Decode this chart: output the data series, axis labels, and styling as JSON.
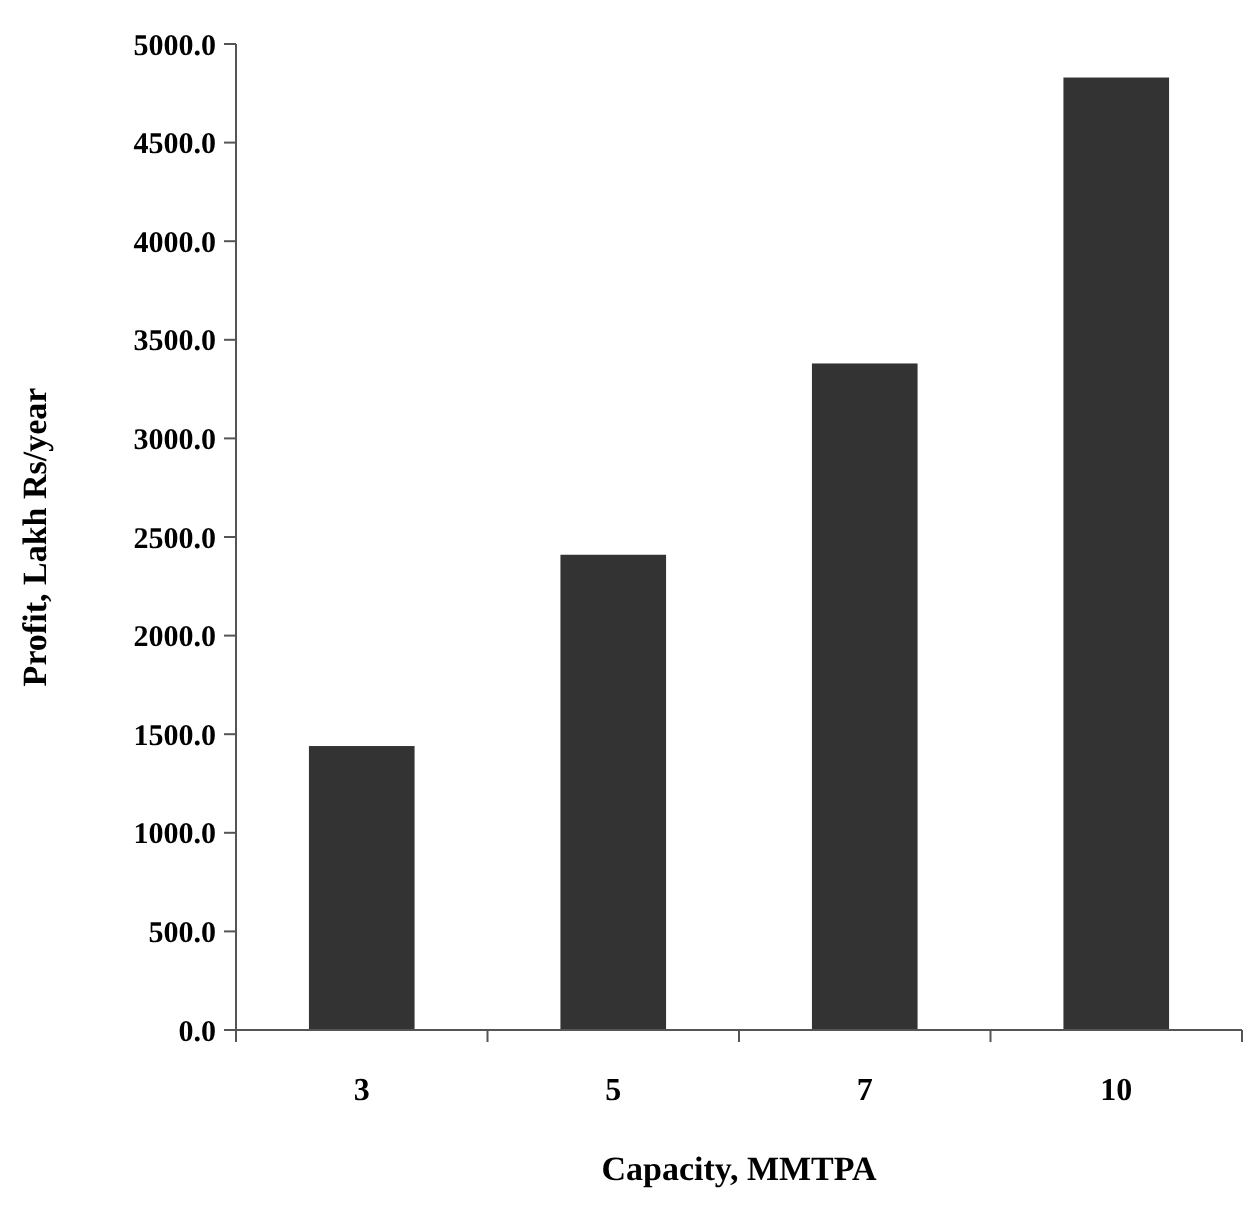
{
  "chart_data": {
    "type": "bar",
    "xlabel": "Capacity, MMTPA",
    "ylabel": "Profit, Lakh Rs/year",
    "categories": [
      "3",
      "5",
      "7",
      "10"
    ],
    "values": [
      1440,
      2410,
      3380,
      4830
    ],
    "color": "#333333",
    "ylim": [
      0,
      5000
    ],
    "yticks": [
      {
        "value": 0,
        "label": "0.0"
      },
      {
        "value": 500,
        "label": "500.0"
      },
      {
        "value": 1000,
        "label": "1000.0"
      },
      {
        "value": 1500,
        "label": "1500.0"
      },
      {
        "value": 2000,
        "label": "2000.0"
      },
      {
        "value": 2500,
        "label": "2500.0"
      },
      {
        "value": 3000,
        "label": "3000.0"
      },
      {
        "value": 3500,
        "label": "3500.0"
      },
      {
        "value": 4000,
        "label": "4000.0"
      },
      {
        "value": 4500,
        "label": "4500.0"
      },
      {
        "value": 5000,
        "label": "5000.0"
      }
    ],
    "grid": false
  }
}
